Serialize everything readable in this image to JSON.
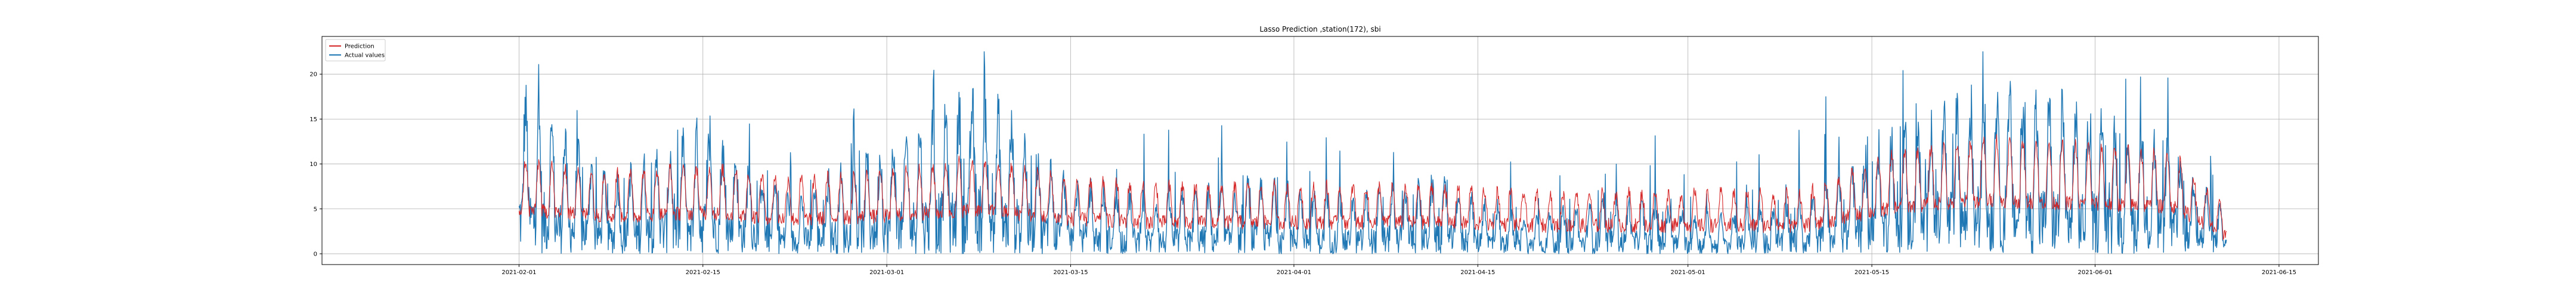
{
  "chart_data": {
    "type": "line",
    "title": "Lasso Prediction ,station(172), sbi",
    "xlabel": "",
    "ylabel": "",
    "grid": true,
    "legend_position": "top-left",
    "x_range": [
      "2021-01-17",
      "2021-06-18"
    ],
    "y_range": [
      -1.2,
      24.2
    ],
    "x_ticks": [
      "2021-02-01",
      "2021-02-15",
      "2021-03-01",
      "2021-03-15",
      "2021-04-01",
      "2021-04-15",
      "2021-05-01",
      "2021-05-15",
      "2021-06-01",
      "2021-06-15"
    ],
    "y_ticks": [
      0,
      5,
      10,
      15,
      20
    ],
    "series": [
      {
        "name": "Prediction",
        "color": "#d62728",
        "x": [
          "2021-02-01",
          "2021-02-08",
          "2021-02-15",
          "2021-02-22",
          "2021-03-01",
          "2021-03-08",
          "2021-03-15",
          "2021-03-22",
          "2021-03-29",
          "2021-04-05",
          "2021-04-12",
          "2021-04-19",
          "2021-04-26",
          "2021-05-03",
          "2021-05-10",
          "2021-05-17",
          "2021-05-24",
          "2021-05-31",
          "2021-06-07",
          "2021-06-11"
        ],
        "values": [
          7,
          6,
          6.5,
          5.5,
          6,
          7,
          5.5,
          5,
          5,
          5,
          5,
          4.5,
          4.5,
          4.5,
          4.5,
          7.5,
          8.5,
          8,
          7.5,
          3
        ]
      },
      {
        "name": "Actual values",
        "color": "#1f77b4",
        "x": [
          "2021-02-01",
          "2021-02-08",
          "2021-02-15",
          "2021-02-22",
          "2021-03-01",
          "2021-03-08",
          "2021-03-15",
          "2021-03-22",
          "2021-03-29",
          "2021-04-05",
          "2021-04-12",
          "2021-04-19",
          "2021-04-26",
          "2021-05-03",
          "2021-05-10",
          "2021-05-17",
          "2021-05-24",
          "2021-05-31",
          "2021-06-07",
          "2021-06-11"
        ],
        "values": [
          9,
          4,
          7,
          3,
          6,
          9,
          4,
          3,
          4,
          3,
          4,
          2,
          3,
          2,
          3,
          7,
          9,
          8,
          6,
          2
        ]
      }
    ]
  }
}
